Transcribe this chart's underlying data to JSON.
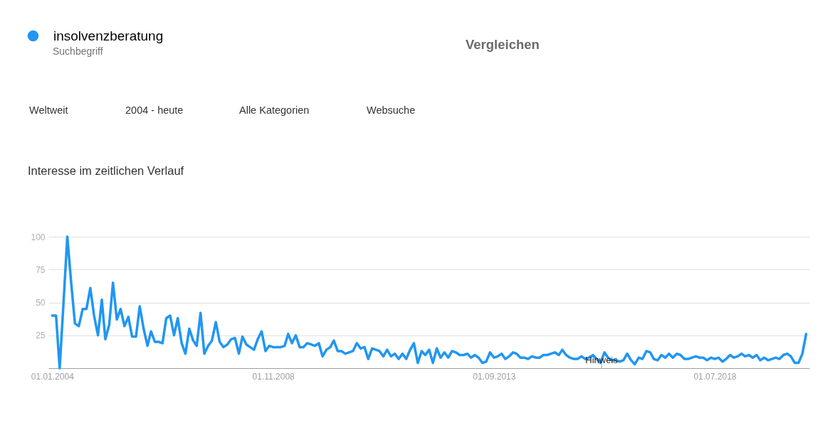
{
  "chart_data": {
    "type": "line",
    "title": "Interesse im zeitlichen Verlauf",
    "x": [
      "2004-01",
      "2004-02",
      "2004-03",
      "2004-04",
      "2004-05",
      "2004-06",
      "2004-07",
      "2004-08",
      "2004-09",
      "2004-10",
      "2004-11",
      "2004-12",
      "2005-01",
      "2005-02",
      "2005-03",
      "2005-04",
      "2005-05",
      "2005-06",
      "2005-07",
      "2005-08",
      "2005-09",
      "2005-10",
      "2005-11",
      "2005-12",
      "2006-01",
      "2006-02",
      "2006-03",
      "2006-04",
      "2006-05",
      "2006-06",
      "2006-07",
      "2006-08",
      "2006-09",
      "2006-10",
      "2006-11",
      "2006-12",
      "2007-01",
      "2007-02",
      "2007-03",
      "2007-04",
      "2007-05",
      "2007-06",
      "2007-07",
      "2007-08",
      "2007-09",
      "2007-10",
      "2007-11",
      "2007-12",
      "2008-01",
      "2008-02",
      "2008-03",
      "2008-04",
      "2008-05",
      "2008-06",
      "2008-07",
      "2008-08",
      "2008-09",
      "2008-10",
      "2008-11",
      "2008-12",
      "2009-01",
      "2009-02",
      "2009-03",
      "2009-04",
      "2009-05",
      "2009-06",
      "2009-07",
      "2009-08",
      "2009-09",
      "2009-10",
      "2009-11",
      "2009-12",
      "2010-01",
      "2010-02",
      "2010-03",
      "2010-04",
      "2010-05",
      "2010-06",
      "2010-07",
      "2010-08",
      "2010-09",
      "2010-10",
      "2010-11",
      "2010-12",
      "2011-01",
      "2011-02",
      "2011-03",
      "2011-04",
      "2011-05",
      "2011-06",
      "2011-07",
      "2011-08",
      "2011-09",
      "2011-10",
      "2011-11",
      "2011-12",
      "2012-01",
      "2012-02",
      "2012-03",
      "2012-04",
      "2012-05",
      "2012-06",
      "2012-07",
      "2012-08",
      "2012-09",
      "2012-10",
      "2012-11",
      "2012-12",
      "2013-01",
      "2013-02",
      "2013-03",
      "2013-04",
      "2013-05",
      "2013-06",
      "2013-07",
      "2013-08",
      "2013-09",
      "2013-10",
      "2013-11",
      "2013-12",
      "2014-01",
      "2014-02",
      "2014-03",
      "2014-04",
      "2014-05",
      "2014-06",
      "2014-07",
      "2014-08",
      "2014-09",
      "2014-10",
      "2014-11",
      "2014-12",
      "2015-01",
      "2015-02",
      "2015-03",
      "2015-04",
      "2015-05",
      "2015-06",
      "2015-07",
      "2015-08",
      "2015-09",
      "2015-10",
      "2015-11",
      "2015-12",
      "2016-01",
      "2016-02",
      "2016-03",
      "2016-04",
      "2016-05",
      "2016-06",
      "2016-07",
      "2016-08",
      "2016-09",
      "2016-10",
      "2016-11",
      "2016-12",
      "2017-01",
      "2017-02",
      "2017-03",
      "2017-04",
      "2017-05",
      "2017-06",
      "2017-07",
      "2017-08",
      "2017-09",
      "2017-10",
      "2017-11",
      "2017-12",
      "2018-01",
      "2018-02",
      "2018-03",
      "2018-04",
      "2018-05",
      "2018-06",
      "2018-07",
      "2018-08",
      "2018-09",
      "2018-10",
      "2018-11",
      "2018-12",
      "2019-01",
      "2019-02",
      "2019-03",
      "2019-04",
      "2019-05",
      "2019-06",
      "2019-07",
      "2019-08",
      "2019-09",
      "2019-10",
      "2019-11",
      "2019-12",
      "2020-01",
      "2020-02",
      "2020-03",
      "2020-04",
      "2020-05",
      "2020-06",
      "2020-07"
    ],
    "series": [
      {
        "name": "insolvenzberatung",
        "color": "#2196f3",
        "values": [
          40,
          40,
          0,
          50,
          100,
          65,
          34,
          32,
          45,
          45,
          61,
          40,
          25,
          52,
          22,
          33,
          65,
          37,
          45,
          32,
          39,
          24,
          24,
          47,
          30,
          17,
          28,
          20,
          20,
          19,
          38,
          40,
          25,
          38,
          19,
          11,
          30,
          21,
          17,
          42,
          11,
          17,
          21,
          35,
          20,
          16,
          18,
          22,
          23,
          11,
          24,
          18,
          16,
          14,
          22,
          28,
          13,
          17,
          16,
          16,
          16,
          17,
          26,
          19,
          25,
          16,
          16,
          19,
          18,
          17,
          19,
          9,
          14,
          16,
          21,
          13,
          13,
          11,
          12,
          13,
          19,
          15,
          16,
          7,
          15,
          14,
          13,
          9,
          14,
          9,
          11,
          7,
          11,
          7,
          14,
          19,
          4,
          13,
          10,
          14,
          4,
          15,
          8,
          12,
          8,
          13,
          12,
          10,
          10,
          11,
          8,
          10,
          8,
          4,
          5,
          12,
          8,
          9,
          11,
          7,
          9,
          12,
          11,
          8,
          8,
          7,
          9,
          8,
          8,
          10,
          10,
          11,
          12,
          10,
          14,
          10,
          8,
          7,
          7,
          9,
          7,
          8,
          10,
          7,
          4,
          12,
          8,
          6,
          6,
          5,
          6,
          11,
          6,
          3,
          8,
          7,
          13,
          12,
          7,
          6,
          10,
          8,
          11,
          8,
          11,
          10,
          7,
          7,
          8,
          9,
          8,
          8,
          6,
          8,
          7,
          8,
          5,
          7,
          10,
          8,
          9,
          11,
          9,
          10,
          8,
          10,
          6,
          8,
          6,
          7,
          8,
          7,
          10,
          11,
          9,
          4,
          4,
          11,
          26
        ]
      }
    ],
    "xlim": [
      "2003-12-02",
      "2020-07-27"
    ],
    "xticks": [
      {
        "value": "2004-01-01",
        "label": "01.01.2004"
      },
      {
        "value": "2008-11-01",
        "label": "01.11.2008"
      },
      {
        "value": "2013-09-01",
        "label": "01.09.2013"
      },
      {
        "value": "2018-07-01",
        "label": "01.07.2018"
      }
    ],
    "ylim": [
      0,
      100
    ],
    "yticks": [
      25,
      50,
      75,
      100
    ],
    "grid": "y",
    "legend": "top left",
    "line_style": "solid",
    "annotations": [
      "Suchbegriff",
      "Vergleichen",
      "Weltweit",
      "2004 - heute",
      "Alle Kategorien",
      "Websuche",
      "Hinweis"
    ]
  }
}
